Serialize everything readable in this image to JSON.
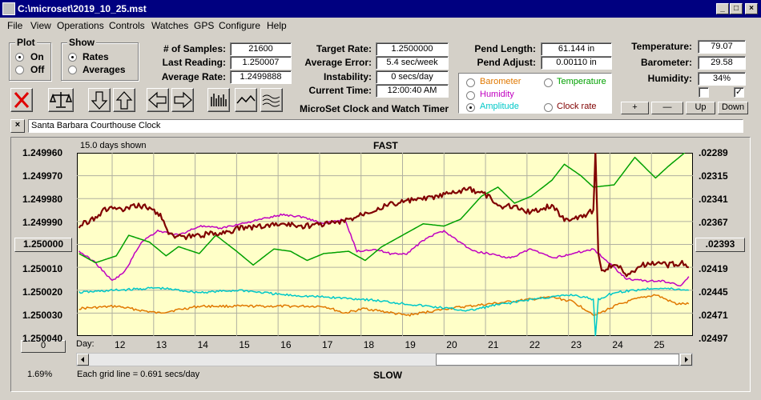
{
  "window": {
    "title": "C:\\microset\\2019_10_25.mst",
    "min": "_",
    "max": "□",
    "close": "×"
  },
  "menu": [
    "File",
    "View",
    "Operations",
    "Controls",
    "Watches",
    "GPS",
    "Configure",
    "Help"
  ],
  "plot": {
    "label": "Plot",
    "on": "On",
    "off": "Off",
    "selected": "On"
  },
  "show": {
    "label": "Show",
    "rates": "Rates",
    "averages": "Averages",
    "selected": "Rates"
  },
  "stats": {
    "samples_label": "# of Samples:",
    "samples": "21600",
    "last_reading_label": "Last Reading:",
    "last_reading": "1.250007",
    "avg_rate_label": "Average Rate:",
    "avg_rate": "1.2499888"
  },
  "targets": {
    "target_rate_label": "Target Rate:",
    "target_rate": "1.2500000",
    "avg_error_label": "Average Error:",
    "avg_error": "5.4 sec/week",
    "instability_label": "Instability:",
    "instability": "0 secs/day",
    "current_time_label": "Current Time:",
    "current_time": "12:00:40 AM"
  },
  "app_name": "MicroSet Clock and Watch Timer",
  "pend": {
    "length_label": "Pend Length:",
    "length": "61.144 in",
    "adjust_label": "Pend Adjust:",
    "adjust": "0.00110 in"
  },
  "sensors": {
    "temperature_label": "Temperature:",
    "temperature": "79.07",
    "barometer_label": "Barometer:",
    "barometer": "29.58",
    "humidity_label": "Humidity:",
    "humidity": "34%"
  },
  "checkboxes": {
    "left_checked": false,
    "right_checked": true,
    "right_mark": "✓"
  },
  "scale_buttons": {
    "plus": "+",
    "minus": "—",
    "up": "Up",
    "down": "Down"
  },
  "overlay_options": {
    "barometer": "Barometer",
    "temperature": "Temperature",
    "humidity": "Humidity",
    "amplitude": "Amplitude",
    "clock_rate": "Clock rate",
    "selected": "Amplitude",
    "colors": {
      "barometer": "#e07800",
      "temperature": "#00a000",
      "humidity": "#c000c0",
      "amplitude": "#00c8c8",
      "clock_rate": "#800000"
    }
  },
  "clock_name": "Santa Barbara Courthouse Clock",
  "clock_close": "×",
  "graph": {
    "days_shown": "15.0 days shown",
    "fast": "FAST",
    "slow": "SLOW",
    "center_button": "1.250000",
    "zero_button": "0",
    "right_button": ".02393",
    "day_label": "Day:",
    "days": [
      "12",
      "13",
      "14",
      "15",
      "16",
      "17",
      "18",
      "19",
      "20",
      "21",
      "22",
      "23",
      "24",
      "25"
    ],
    "left_ticks": [
      "1.249960",
      "1.249970",
      "1.249980",
      "1.249990",
      "",
      "1.250010",
      "1.250020",
      "1.250030",
      "1.250040"
    ],
    "right_ticks": [
      ".02289",
      ".02315",
      ".02341",
      ".02367",
      "",
      ".02419",
      ".02445",
      ".02471",
      ".02497"
    ],
    "grid_note": "Each grid line = 0.691 secs/day",
    "percent": "1.69%"
  },
  "chart_data": {
    "type": "line",
    "x_unit": "day",
    "xlim": [
      11.05,
      25.9
    ],
    "ylim": [
      1.24996,
      1.25004
    ],
    "series": [
      {
        "name": "Clock rate",
        "color": "#800000",
        "points": [
          [
            11.1,
            1.249992
          ],
          [
            11.5,
            1.249988
          ],
          [
            11.8,
            1.249984
          ],
          [
            12.2,
            1.249985
          ],
          [
            12.5,
            1.249983
          ],
          [
            12.8,
            1.249984
          ],
          [
            13.1,
            1.249988
          ],
          [
            13.3,
            1.249996
          ],
          [
            13.6,
            1.249997
          ],
          [
            14,
            1.249996
          ],
          [
            14.5,
            1.249995
          ],
          [
            15,
            1.249993
          ],
          [
            15.5,
            1.249992
          ],
          [
            16,
            1.249991
          ],
          [
            16.5,
            1.249992
          ],
          [
            17,
            1.249991
          ],
          [
            17.5,
            1.24999
          ],
          [
            18,
            1.249986
          ],
          [
            18.5,
            1.249983
          ],
          [
            19,
            1.249981
          ],
          [
            19.5,
            1.24998
          ],
          [
            20,
            1.249978
          ],
          [
            20.5,
            1.249976
          ],
          [
            21,
            1.249979
          ],
          [
            21.2,
            1.249984
          ],
          [
            21.5,
            1.249983
          ],
          [
            22,
            1.249986
          ],
          [
            22.5,
            1.249983
          ],
          [
            22.8,
            1.249989
          ],
          [
            23.2,
            1.249988
          ],
          [
            23.5,
            1.249985
          ],
          [
            23.55,
            1.24996
          ],
          [
            23.62,
            1.250003
          ],
          [
            23.7,
            1.250012
          ],
          [
            24,
            1.250008
          ],
          [
            24.3,
            1.250013
          ],
          [
            24.7,
            1.250009
          ],
          [
            25,
            1.250008
          ],
          [
            25.3,
            1.250009
          ],
          [
            25.6,
            1.250008
          ],
          [
            25.8,
            1.25001
          ]
        ]
      },
      {
        "name": "Temperature",
        "color": "#00a000",
        "points": [
          [
            11.1,
            1.250004
          ],
          [
            11.5,
            1.250008
          ],
          [
            12,
            1.250005
          ],
          [
            12.3,
            1.249996
          ],
          [
            12.8,
            1.249999
          ],
          [
            13.2,
            1.250005
          ],
          [
            13.5,
            1.250001
          ],
          [
            14,
            1.250004
          ],
          [
            14.4,
            1.249996
          ],
          [
            14.9,
            1.250003
          ],
          [
            15.3,
            1.250009
          ],
          [
            15.8,
            1.250002
          ],
          [
            16.2,
            1.250003
          ],
          [
            16.6,
            1.250007
          ],
          [
            17,
            1.250004
          ],
          [
            17.6,
            1.250003
          ],
          [
            18,
            1.250007
          ],
          [
            18.4,
            1.250001
          ],
          [
            18.9,
            1.249996
          ],
          [
            19.4,
            1.249991
          ],
          [
            19.9,
            1.249992
          ],
          [
            20.3,
            1.249989
          ],
          [
            20.8,
            1.249979
          ],
          [
            21.2,
            1.249975
          ],
          [
            21.6,
            1.249982
          ],
          [
            22,
            1.249979
          ],
          [
            22.5,
            1.249972
          ],
          [
            22.8,
            1.249965
          ],
          [
            23.2,
            1.24997
          ],
          [
            23.5,
            1.249975
          ],
          [
            24,
            1.249974
          ],
          [
            24.5,
            1.249962
          ],
          [
            25,
            1.249971
          ],
          [
            25.3,
            1.249966
          ],
          [
            25.7,
            1.24996
          ]
        ]
      },
      {
        "name": "Humidity",
        "color": "#c000c0",
        "points": [
          [
            11.1,
            1.250003
          ],
          [
            11.5,
            1.250008
          ],
          [
            11.9,
            1.250016
          ],
          [
            12.2,
            1.250012
          ],
          [
            12.6,
            1.249999
          ],
          [
            13,
            1.249994
          ],
          [
            13.5,
            1.249996
          ],
          [
            14,
            1.249992
          ],
          [
            14.5,
            1.249993
          ],
          [
            15,
            1.249991
          ],
          [
            15.5,
            1.249989
          ],
          [
            16,
            1.249987
          ],
          [
            16.5,
            1.249988
          ],
          [
            17,
            1.249991
          ],
          [
            17.5,
            1.249989
          ],
          [
            17.8,
            1.250003
          ],
          [
            18.2,
            1.250002
          ],
          [
            18.6,
            1.250004
          ],
          [
            19,
            1.250004
          ],
          [
            19.5,
            1.249997
          ],
          [
            19.9,
            1.249994
          ],
          [
            20.2,
            1.249998
          ],
          [
            20.6,
            1.250003
          ],
          [
            21,
            1.250004
          ],
          [
            21.5,
            1.250006
          ],
          [
            22,
            1.250002
          ],
          [
            22.5,
            1.250006
          ],
          [
            23,
            1.250004
          ],
          [
            23.5,
            1.250002
          ],
          [
            24,
            1.25001
          ],
          [
            24.3,
            1.250015
          ],
          [
            24.8,
            1.250016
          ],
          [
            25.2,
            1.250016
          ],
          [
            25.6,
            1.250018
          ],
          [
            25.8,
            1.250014
          ]
        ]
      },
      {
        "name": "Amplitude",
        "color": "#00c8c8",
        "points": [
          [
            11.1,
            1.250021
          ],
          [
            12,
            1.25002
          ],
          [
            13,
            1.250019
          ],
          [
            14,
            1.250021
          ],
          [
            15,
            1.25002
          ],
          [
            16,
            1.250022
          ],
          [
            17,
            1.250023
          ],
          [
            18,
            1.250024
          ],
          [
            19,
            1.250026
          ],
          [
            20,
            1.250028
          ],
          [
            20.5,
            1.250029
          ],
          [
            21,
            1.250027
          ],
          [
            22,
            1.250024
          ],
          [
            23,
            1.250022
          ],
          [
            23.5,
            1.250024
          ],
          [
            23.55,
            1.25004
          ],
          [
            23.62,
            1.250024
          ],
          [
            24,
            1.250021
          ],
          [
            25,
            1.250019
          ],
          [
            25.8,
            1.25002
          ]
        ]
      },
      {
        "name": "Barometer",
        "color": "#e07800",
        "points": [
          [
            11.1,
            1.250028
          ],
          [
            12,
            1.250027
          ],
          [
            13,
            1.25003
          ],
          [
            14,
            1.250027
          ],
          [
            15,
            1.250027
          ],
          [
            16,
            1.250027
          ],
          [
            17,
            1.250027
          ],
          [
            17.5,
            1.25003
          ],
          [
            18,
            1.250028
          ],
          [
            19,
            1.250031
          ],
          [
            20,
            1.250028
          ],
          [
            21,
            1.250026
          ],
          [
            22,
            1.250024
          ],
          [
            22.5,
            1.250023
          ],
          [
            23,
            1.250025
          ],
          [
            23.55,
            1.250031
          ],
          [
            24,
            1.250027
          ],
          [
            24.5,
            1.250024
          ],
          [
            25,
            1.250022
          ],
          [
            25.5,
            1.250026
          ],
          [
            25.8,
            1.250026
          ]
        ]
      }
    ]
  }
}
